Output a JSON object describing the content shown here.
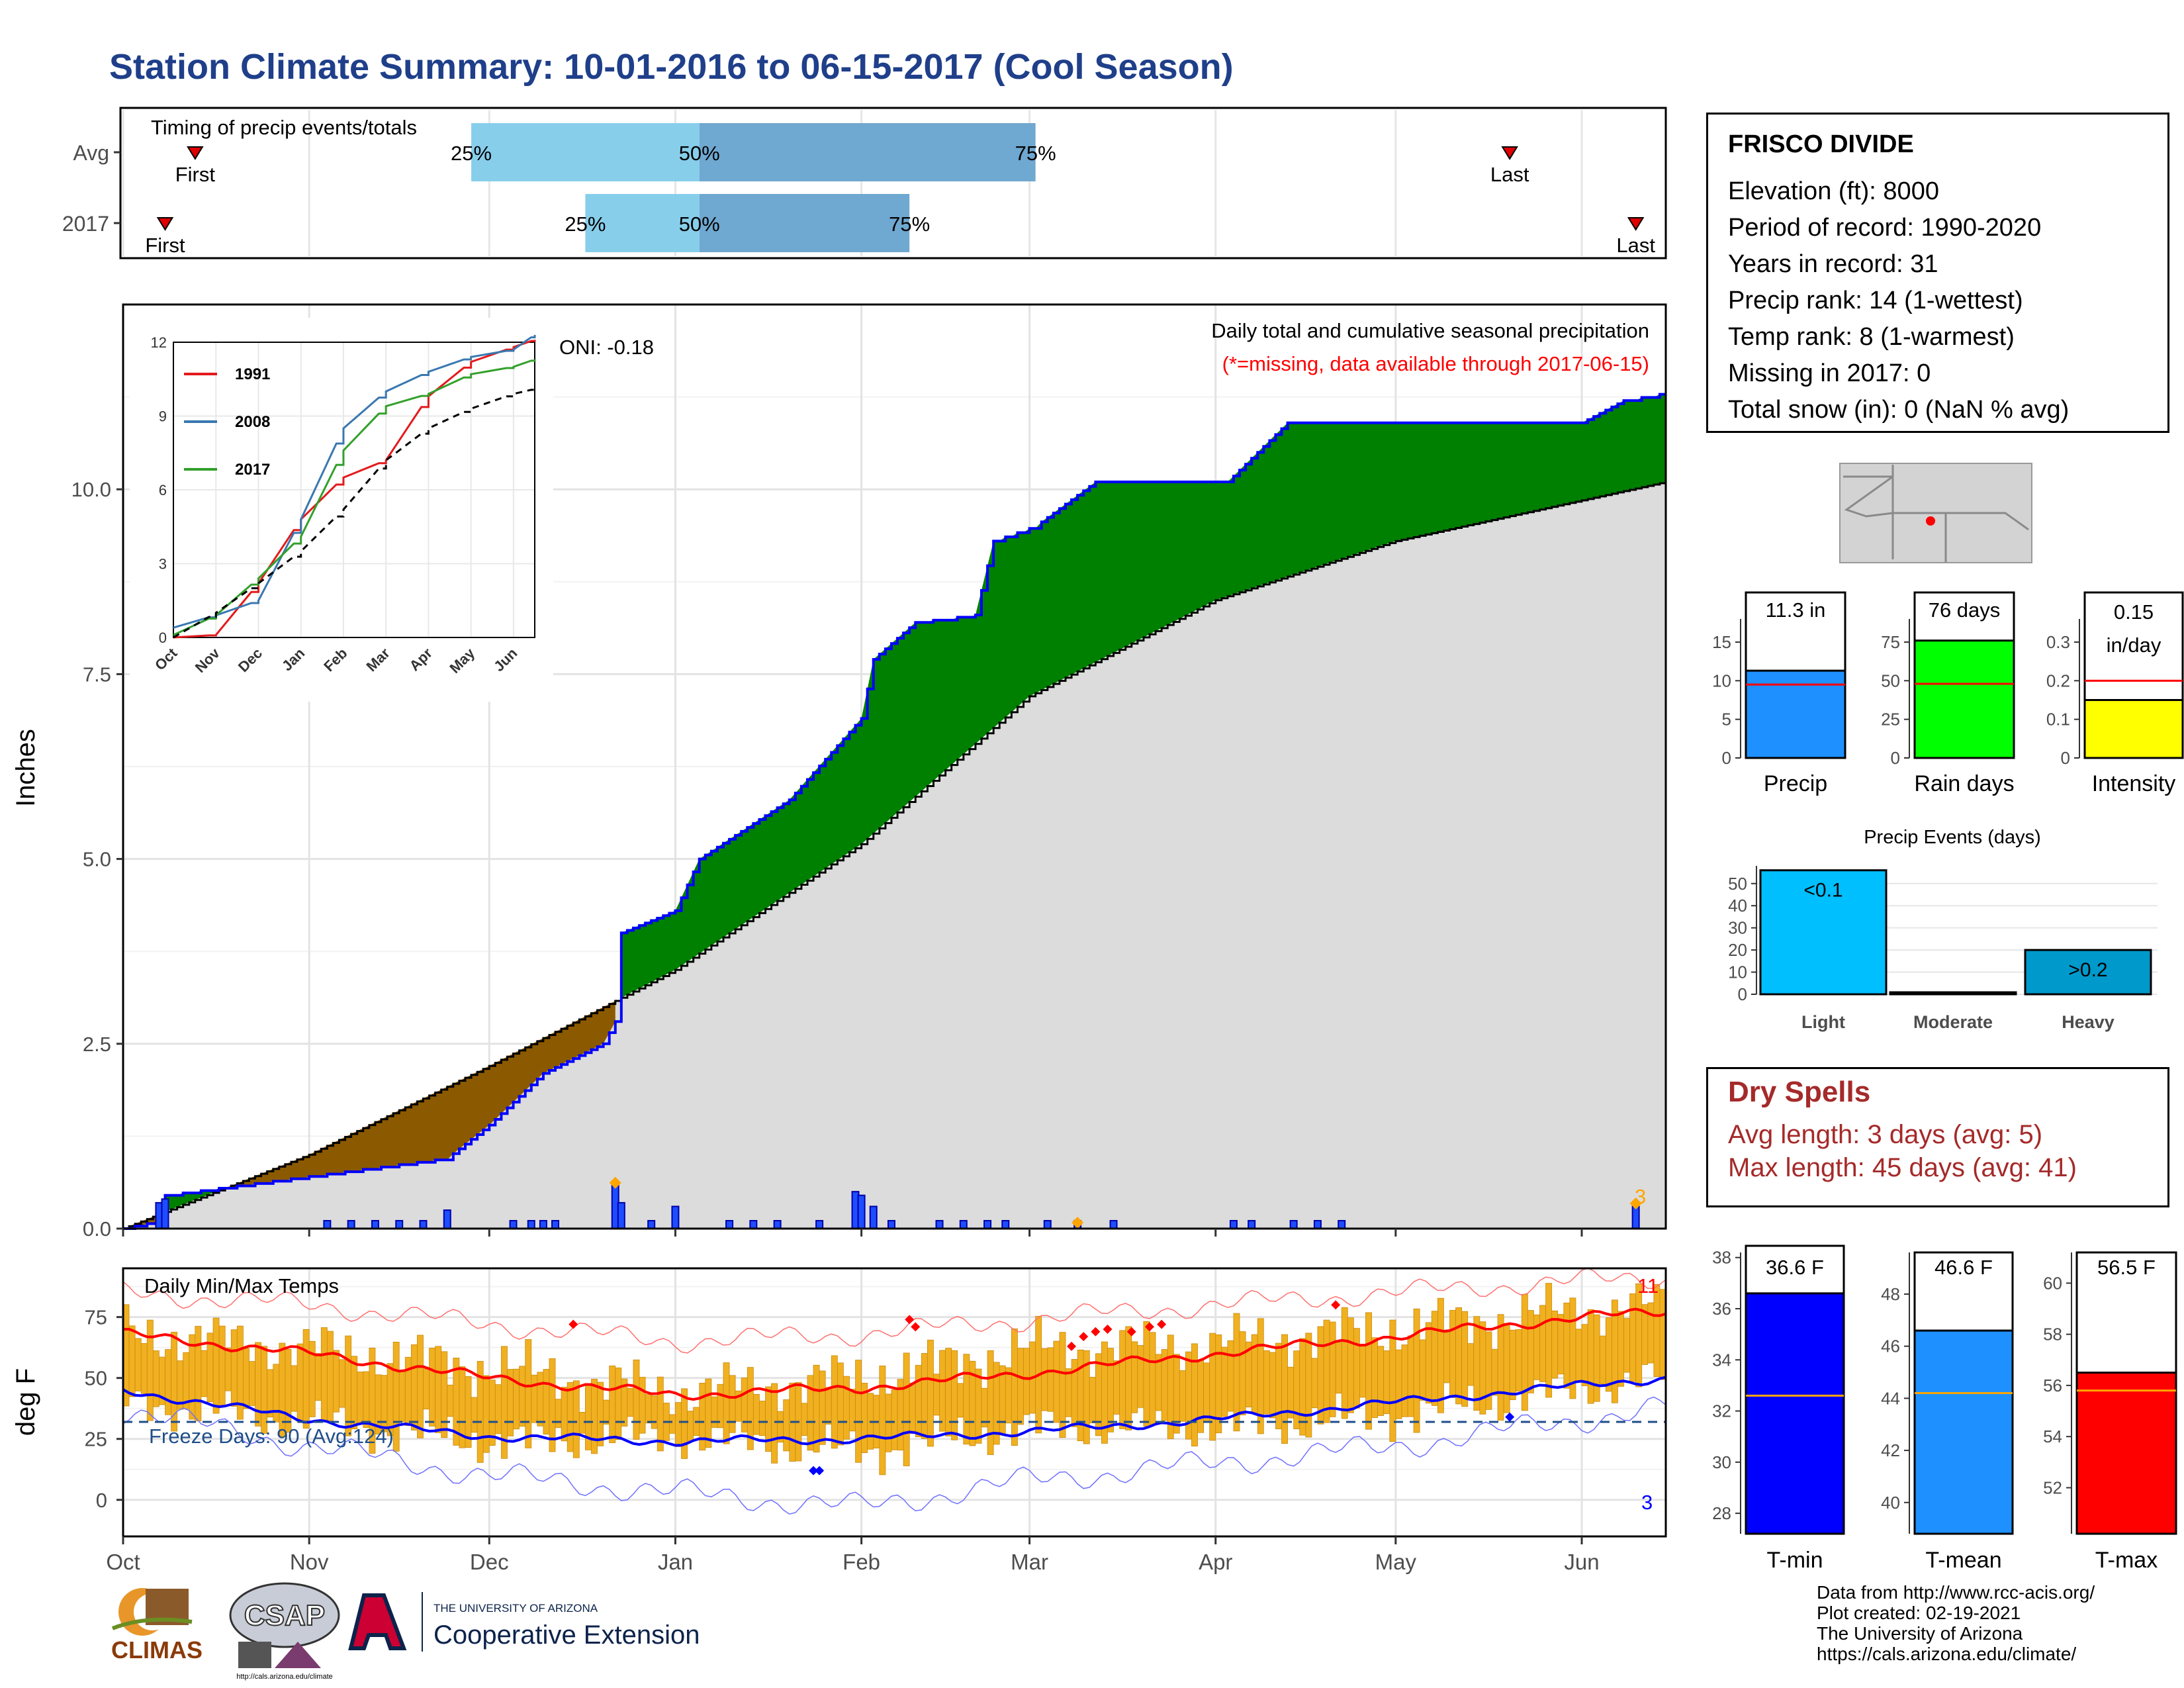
{
  "title": "Station Climate Summary: 10-01-2016 to 06-15-2017 (Cool Season)",
  "colors": {
    "title": "#1f3f8a",
    "dark_blue": "#0000ff",
    "green_fill": "#008000",
    "brown_fill": "#8b5a00",
    "gray_fill": "#dcdcdc",
    "temp_bar": "#f0b020",
    "max_line": "#ff0000",
    "min_line": "#0000ff",
    "dry_spell": "#a52a2a"
  },
  "timing": {
    "title": "Timing of precip events/totals",
    "rows": [
      {
        "label": "Avg",
        "first": "First",
        "last": "Last",
        "p25": "25%",
        "p50": "50%",
        "p75": "75%",
        "first_date": "2016-10-13",
        "p25_date": "2016-11-28",
        "p50_date": "2017-01-05",
        "p75_date": "2017-03-02",
        "last_date": "2017-05-20"
      },
      {
        "label": "2017",
        "first": "First",
        "last": "Last",
        "p25": "25%",
        "p50": "50%",
        "p75": "75%",
        "first_date": "2016-10-08",
        "p25_date": "2016-12-17",
        "p50_date": "2017-01-05",
        "p75_date": "2017-02-09",
        "last_date": "2017-06-10"
      }
    ]
  },
  "precip_panel": {
    "title": "Daily total and cumulative seasonal precipitation",
    "missing_note": "(*=missing, data available through 2017-06-15)",
    "oni": "ONI: -0.18",
    "ylabel": "Inches",
    "max_daily_label": "3"
  },
  "inset": {
    "series": [
      {
        "name": "1991",
        "color": "#e31a1c"
      },
      {
        "name": "2008",
        "color": "#3a78b0"
      },
      {
        "name": "2017",
        "color": "#33a02c"
      }
    ]
  },
  "temp_panel": {
    "title": "Daily Min/Max Temps",
    "freeze_days": "Freeze Days: 90 (Avg:124)",
    "ylabel": "deg F",
    "record_high_count": "11",
    "record_low_count": "3"
  },
  "station": {
    "name": "FRISCO DIVIDE",
    "elevation": "Elevation (ft): 8000",
    "period": "Period of record: 1990-2020",
    "years": "Years in record: 31",
    "precip_rank": "Precip rank: 14 (1-wettest)",
    "temp_rank": "Temp rank: 8 (1-warmest)",
    "missing": "Missing in 2017: 0",
    "snow": "Total snow (in): 0 (NaN % avg)"
  },
  "summary_bars": [
    {
      "label": "Precip",
      "value": 11.3,
      "avg": 9.5,
      "text1": "11.3 in",
      "text2": "",
      "ymax": 18,
      "ticks": [
        0,
        5,
        10,
        15
      ],
      "color": "#1e90ff"
    },
    {
      "label": "Rain days",
      "value": 76,
      "avg": 48,
      "text1": "76 days",
      "text2": "",
      "ymax": 90,
      "ticks": [
        0,
        25,
        50,
        75
      ],
      "color": "#00ff00"
    },
    {
      "label": "Intensity",
      "value": 0.15,
      "avg": 0.2,
      "text1": "0.15",
      "text2": "in/day",
      "ymax": 0.36,
      "ticks": [
        0.0,
        0.1,
        0.2,
        0.3
      ],
      "color": "#ffff00"
    }
  ],
  "events": {
    "title": "Precip Events (days)",
    "categories": [
      "Light",
      "Moderate",
      "Heavy"
    ],
    "values": [
      56,
      0,
      20
    ],
    "labels": [
      "<0.1",
      "",
      ">0.2"
    ],
    "colors": [
      "#00bfff",
      "#1e90ff",
      "#0099cc"
    ],
    "ticks": [
      0,
      10,
      20,
      30,
      40,
      50
    ]
  },
  "dry_spells": {
    "title": "Dry Spells",
    "avg": "Avg length: 3 days (avg: 5)",
    "max": "Max length: 45 days (avg: 41)"
  },
  "temp_bars": [
    {
      "label": "T-min",
      "value": 36.6,
      "avg": 32.6,
      "text": "36.6 F",
      "ymin": 27.2,
      "ymax": 38.2,
      "ticks": [
        28,
        30,
        32,
        34,
        36,
        38
      ],
      "color": "#0000ff"
    },
    {
      "label": "T-mean",
      "value": 46.6,
      "avg": 44.2,
      "text": "46.6 F",
      "ymin": 38.8,
      "ymax": 49.6,
      "ticks": [
        40,
        42,
        44,
        46,
        48
      ],
      "color": "#1e90ff"
    },
    {
      "label": "T-max",
      "value": 56.5,
      "avg": 55.8,
      "text": "56.5 F",
      "ymin": 50.2,
      "ymax": 61.2,
      "ticks": [
        52,
        54,
        56,
        58,
        60
      ],
      "color": "#ff0000"
    }
  ],
  "footer": [
    "Data from http://www.rcc-acis.org/",
    "Plot created: 02-19-2021",
    "The University of Arizona",
    "https://cals.arizona.edu/climate/"
  ],
  "logos": {
    "climas": "CLIMAS",
    "csap": "CSAP",
    "csap_url": "http://cals.arizona.edu/climate",
    "ua_small": "THE UNIVERSITY OF ARIZONA",
    "ua_big": "Cooperative Extension"
  },
  "chart_data": [
    {
      "type": "bar",
      "title": "Timing of precip events/totals",
      "categories": [
        "Avg",
        "2017"
      ],
      "series": [
        {
          "name": "25%",
          "values": [
            "2016-11-28",
            "2016-12-17"
          ]
        },
        {
          "name": "50%",
          "values": [
            "2017-01-05",
            "2017-01-05"
          ]
        },
        {
          "name": "75%",
          "values": [
            "2017-03-02",
            "2017-02-09"
          ]
        }
      ]
    },
    {
      "type": "area",
      "title": "Daily total and cumulative seasonal precipitation",
      "ylabel": "Inches",
      "xlabel": "",
      "ylim": [
        0,
        12.5
      ],
      "yticks": [
        0.0,
        2.5,
        5.0,
        7.5,
        10.0
      ],
      "xticks": [
        "Oct",
        "Nov",
        "Dec",
        "Jan",
        "Feb",
        "Mar",
        "Apr",
        "May",
        "Jun"
      ],
      "series": [
        {
          "name": "2017 cumulative",
          "x": [
            "2016-10-01",
            "2016-10-07",
            "2016-10-08",
            "2016-11-24",
            "2016-12-01",
            "2016-12-10",
            "2016-12-20",
            "2016-12-22",
            "2016-12-23",
            "2017-01-01",
            "2017-01-05",
            "2017-01-20",
            "2017-02-01",
            "2017-02-03",
            "2017-02-10",
            "2017-02-20",
            "2017-02-23",
            "2017-03-02",
            "2017-03-12",
            "2017-04-03",
            "2017-04-13",
            "2017-06-01",
            "2017-06-08",
            "2017-06-15"
          ],
          "values": [
            0.0,
            0.1,
            0.45,
            0.95,
            1.4,
            2.1,
            2.5,
            2.8,
            4.0,
            4.3,
            5.0,
            5.8,
            6.9,
            7.7,
            8.2,
            8.3,
            9.3,
            9.5,
            10.1,
            10.1,
            10.9,
            10.9,
            11.2,
            11.3
          ]
        },
        {
          "name": "Avg cumulative",
          "x": [
            "2016-10-01",
            "2016-11-01",
            "2016-12-01",
            "2017-01-01",
            "2017-02-01",
            "2017-03-01",
            "2017-04-01",
            "2017-05-01",
            "2017-06-15"
          ],
          "values": [
            0.0,
            1.0,
            2.2,
            3.5,
            5.2,
            7.2,
            8.5,
            9.3,
            10.1
          ]
        },
        {
          "name": "Daily precip",
          "x": [
            "2016-10-07",
            "2016-10-08",
            "2016-11-24",
            "2016-12-22",
            "2016-12-23",
            "2017-01-01",
            "2017-01-31",
            "2017-02-01",
            "2017-02-03",
            "2017-06-10"
          ],
          "values": [
            0.35,
            0.4,
            0.25,
            0.6,
            0.35,
            0.3,
            0.5,
            0.45,
            0.3,
            0.3
          ]
        }
      ]
    },
    {
      "type": "line",
      "title": "",
      "xlabel": "",
      "ylabel": "",
      "ylim": [
        0,
        12
      ],
      "yticks": [
        0,
        3,
        6,
        9,
        12
      ],
      "xticks": [
        "Oct",
        "Nov",
        "Dec",
        "Jan",
        "Feb",
        "Mar",
        "Apr",
        "May",
        "Jun"
      ],
      "x": [
        0,
        1,
        2,
        3,
        4,
        5,
        6,
        7,
        8,
        8.5
      ],
      "series": [
        {
          "name": "1991",
          "values": [
            0,
            0.1,
            2.2,
            4.8,
            6.5,
            7.2,
            9.8,
            11.2,
            11.8,
            12.1
          ]
        },
        {
          "name": "2008",
          "values": [
            0.4,
            0.9,
            1.5,
            4.8,
            8.5,
            10.0,
            10.8,
            11.4,
            11.7,
            12.3
          ]
        },
        {
          "name": "2017",
          "values": [
            0.1,
            0.9,
            2.4,
            4.1,
            7.6,
            9.4,
            9.9,
            10.7,
            11.0,
            11.3
          ]
        },
        {
          "name": "Avg",
          "values": [
            0,
            1.0,
            2.2,
            3.5,
            5.2,
            7.2,
            8.5,
            9.3,
            9.9,
            10.1
          ]
        }
      ]
    },
    {
      "type": "line",
      "title": "Daily Min/Max Temps",
      "ylabel": "deg F",
      "xlabel": "",
      "ylim": [
        -15,
        95
      ],
      "yticks": [
        0,
        25,
        50,
        75
      ],
      "xticks": [
        "Oct",
        "Nov",
        "Dec",
        "Jan",
        "Feb",
        "Mar",
        "Apr",
        "May",
        "Jun"
      ],
      "x": [
        "2016-10-01",
        "2016-11-01",
        "2016-12-01",
        "2017-01-01",
        "2017-02-01",
        "2017-03-01",
        "2017-04-01",
        "2017-05-01",
        "2017-06-01",
        "2017-06-15"
      ],
      "series": [
        {
          "name": "Avg max",
          "values": [
            68,
            60,
            50,
            43,
            46,
            52,
            60,
            67,
            75,
            77
          ]
        },
        {
          "name": "Avg min",
          "values": [
            45,
            33,
            26,
            24,
            25,
            28,
            33,
            40,
            47,
            50
          ]
        },
        {
          "name": "Record high",
          "values": [
            85,
            80,
            72,
            65,
            68,
            74,
            80,
            85,
            90,
            91
          ]
        },
        {
          "name": "Record low",
          "values": [
            37,
            22,
            10,
            3,
            -3,
            8,
            15,
            22,
            33,
            38
          ]
        },
        {
          "name": "Daily max",
          "values": [
            68,
            62,
            54,
            44,
            50,
            62,
            64,
            70,
            78,
            80
          ]
        },
        {
          "name": "Daily min",
          "values": [
            40,
            32,
            24,
            26,
            20,
            30,
            30,
            35,
            46,
            50
          ]
        }
      ]
    }
  ]
}
